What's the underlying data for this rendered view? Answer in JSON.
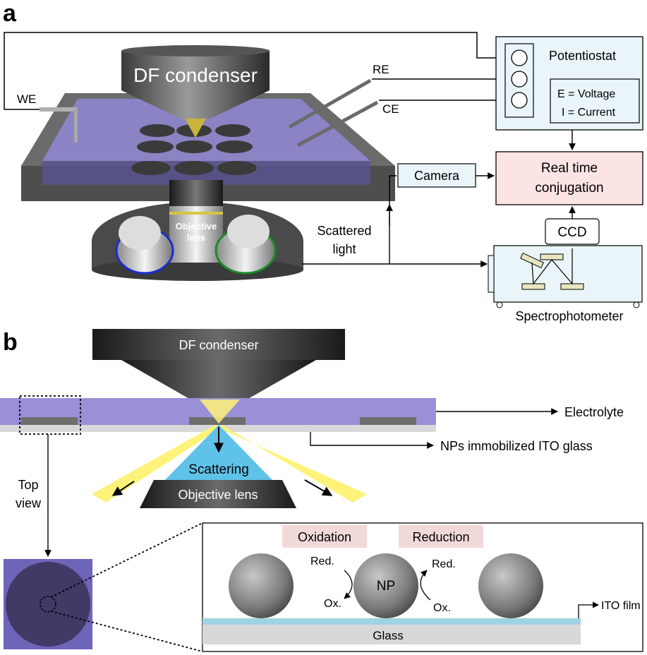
{
  "panel_a": {
    "panel_label": "a",
    "df_condenser": "DF condenser",
    "we": "WE",
    "re": "RE",
    "ce": "CE",
    "objective_lens_line1": "Objective",
    "objective_lens_line2": "lens",
    "potentiostat": "Potentiostat",
    "e_voltage": "E = Voltage",
    "i_current": "I = Current",
    "camera": "Camera",
    "real_time_line1": "Real time",
    "real_time_line2": "conjugation",
    "ccd": "CCD",
    "scattered_line1": "Scattered",
    "scattered_line2": "light",
    "spectrophotometer": "Spectrophotometer"
  },
  "panel_b": {
    "panel_label": "b",
    "df_condenser": "DF condenser",
    "electrolyte": "Electrolyte",
    "nps_ito": "NPs immobilized ITO glass",
    "scattering": "Scattering",
    "objective_lens": "Objective lens",
    "top_view_line1": "Top",
    "top_view_line2": "view",
    "oxidation": "Oxidation",
    "reduction": "Reduction",
    "red_left": "Red.",
    "ox_left": "Ox.",
    "np": "NP",
    "red_right": "Red.",
    "ox_right": "Ox.",
    "ito_film": "ITO film",
    "glass": "Glass"
  },
  "colors": {
    "electrolyte": "#9b8fd6",
    "potentiostat_fill": "#eaf5f9",
    "conjugation_fill": "#fce4e4",
    "label_fill": "#f2d9d9",
    "scattering": "#5fc2e8",
    "beam": "#fff27a",
    "ito": "#9fd3e3",
    "glass": "#d8d8d8"
  }
}
